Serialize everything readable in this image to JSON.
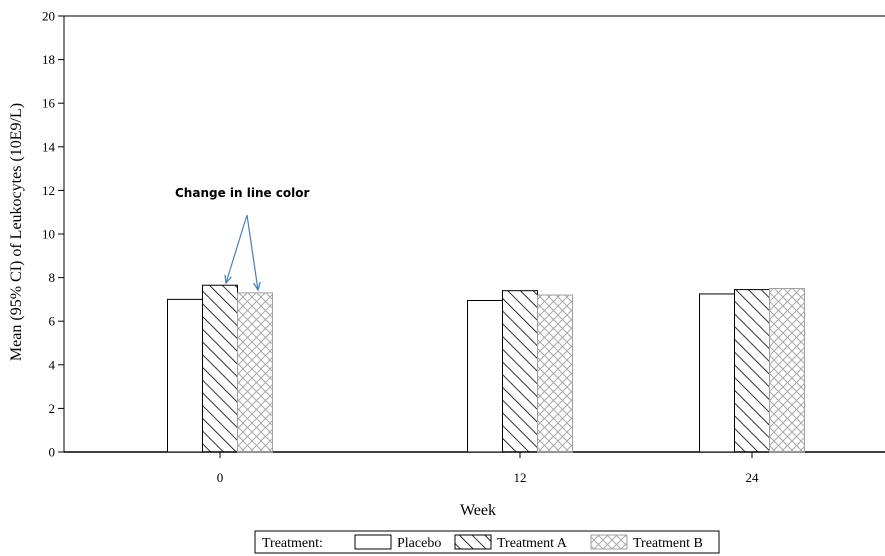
{
  "chart_data": {
    "type": "bar",
    "title": "",
    "xlabel": "Week",
    "ylabel": "Mean (95% CI) of Leukocytes (10E9/L)",
    "categories": [
      "0",
      "12",
      "24"
    ],
    "ylim": [
      0,
      20
    ],
    "yticks": [
      0,
      2,
      4,
      6,
      8,
      10,
      12,
      14,
      16,
      18,
      20
    ],
    "grid": false,
    "legend_position": "bottom",
    "legend_title": "Treatment:",
    "series": [
      {
        "name": "Placebo",
        "values": [
          7.0,
          6.95,
          7.25
        ],
        "pattern": "none",
        "color": "#000000"
      },
      {
        "name": "Treatment A",
        "values": [
          7.65,
          7.4,
          7.45
        ],
        "pattern": "diagonal",
        "color": "#000000"
      },
      {
        "name": "Treatment B",
        "values": [
          7.3,
          7.2,
          7.5
        ],
        "pattern": "crosshatch",
        "color": "#a0a0a0"
      }
    ],
    "annotations": [
      {
        "text": "Change in line color",
        "arrow_color": "#4a7ebb"
      }
    ]
  }
}
